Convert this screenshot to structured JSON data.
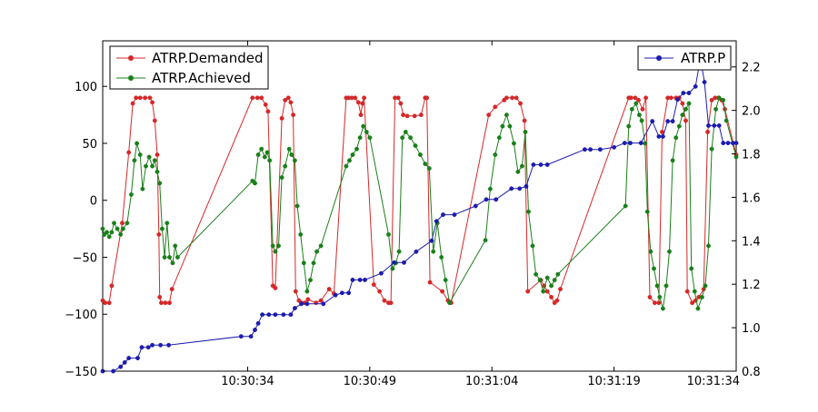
{
  "chart_data": {
    "type": "line",
    "x_unit": "time",
    "x_ticks": [
      "10:30:34",
      "10:30:49",
      "10:31:04",
      "10:31:19",
      "10:31:34"
    ],
    "x_tick_seconds": [
      34,
      49,
      64,
      79,
      94
    ],
    "xlim": [
      16.2,
      94
    ],
    "left_axis": {
      "ylim": [
        -150,
        140
      ],
      "ticks": [
        -150,
        -100,
        -50,
        0,
        50,
        100
      ]
    },
    "right_axis": {
      "ylim": [
        0.8,
        2.32
      ],
      "ticks": [
        0.8,
        1.0,
        1.2,
        1.4,
        1.6,
        1.8,
        2.0,
        2.2
      ],
      "tick_labels": [
        "0.8",
        "1.0",
        "1.2",
        "1.4",
        "1.6",
        "1.8",
        "2.0",
        "2.2"
      ]
    },
    "grid": false,
    "legends": [
      {
        "placement": "top-left",
        "entries": [
          "ATRP.Demanded",
          "ATRP.Achieved"
        ]
      },
      {
        "placement": "top-right",
        "entries": [
          "ATRP.P"
        ]
      }
    ],
    "series": [
      {
        "name": "ATRP.Demanded",
        "axis": "left",
        "color": "#d62728",
        "points": [
          [
            16.2,
            -88
          ],
          [
            16.5,
            -90
          ],
          [
            17.0,
            -90
          ],
          [
            17.3,
            -75
          ],
          [
            18.6,
            -20
          ],
          [
            19.4,
            42
          ],
          [
            19.9,
            85
          ],
          [
            20.3,
            90
          ],
          [
            20.8,
            90
          ],
          [
            21.4,
            90
          ],
          [
            22.0,
            90
          ],
          [
            22.3,
            86
          ],
          [
            22.6,
            70
          ],
          [
            22.9,
            40
          ],
          [
            23.1,
            -30
          ],
          [
            23.2,
            -85
          ],
          [
            23.4,
            -90
          ],
          [
            23.9,
            -90
          ],
          [
            24.4,
            -90
          ],
          [
            24.7,
            -78
          ],
          [
            34.6,
            90
          ],
          [
            35.2,
            90
          ],
          [
            35.7,
            90
          ],
          [
            36.2,
            84
          ],
          [
            36.5,
            78
          ],
          [
            37.1,
            -75
          ],
          [
            37.4,
            -77
          ],
          [
            38.2,
            72
          ],
          [
            38.6,
            88
          ],
          [
            39.0,
            90
          ],
          [
            39.3,
            86
          ],
          [
            39.6,
            75
          ],
          [
            39.9,
            -80
          ],
          [
            40.3,
            -88
          ],
          [
            40.6,
            -90
          ],
          [
            41.0,
            -90
          ],
          [
            41.4,
            -87
          ],
          [
            42.4,
            -90
          ],
          [
            43.0,
            -88
          ],
          [
            44.0,
            -78
          ],
          [
            44.6,
            -82
          ],
          [
            46.1,
            90
          ],
          [
            46.4,
            90
          ],
          [
            46.8,
            90
          ],
          [
            47.2,
            90
          ],
          [
            47.6,
            86
          ],
          [
            47.9,
            75
          ],
          [
            48.1,
            85
          ],
          [
            48.3,
            90
          ],
          [
            49.5,
            -74
          ],
          [
            50.2,
            -80
          ],
          [
            50.8,
            -88
          ],
          [
            51.3,
            -90
          ],
          [
            51.6,
            -90
          ],
          [
            52.1,
            90
          ],
          [
            52.5,
            90
          ],
          [
            52.8,
            85
          ],
          [
            53.1,
            75
          ],
          [
            53.6,
            74
          ],
          [
            54.5,
            74
          ],
          [
            55.3,
            75
          ],
          [
            55.8,
            90
          ],
          [
            56.0,
            90
          ],
          [
            56.4,
            -72
          ],
          [
            57.9,
            -80
          ],
          [
            58.6,
            -88
          ],
          [
            59.0,
            -90
          ],
          [
            63.6,
            75
          ],
          [
            64.4,
            82
          ],
          [
            65.5,
            88
          ],
          [
            65.8,
            90
          ],
          [
            66.5,
            90
          ],
          [
            67.0,
            90
          ],
          [
            67.5,
            85
          ],
          [
            68.0,
            70
          ],
          [
            68.4,
            -80
          ],
          [
            70.0,
            -70
          ],
          [
            70.4,
            -75
          ],
          [
            70.8,
            -80
          ],
          [
            71.3,
            -85
          ],
          [
            71.7,
            -90
          ],
          [
            72.0,
            -88
          ],
          [
            72.4,
            -78
          ],
          [
            80.8,
            90
          ],
          [
            81.1,
            90
          ],
          [
            81.6,
            90
          ],
          [
            82.0,
            88
          ],
          [
            82.5,
            80
          ],
          [
            82.9,
            90
          ],
          [
            83.4,
            -85
          ],
          [
            84.0,
            -90
          ],
          [
            84.5,
            -90
          ],
          [
            84.9,
            60
          ],
          [
            85.6,
            90
          ],
          [
            86.0,
            90
          ],
          [
            86.6,
            90
          ],
          [
            87.0,
            90
          ],
          [
            87.4,
            85
          ],
          [
            87.8,
            70
          ],
          [
            88.0,
            -80
          ],
          [
            88.6,
            -90
          ],
          [
            89.0,
            -88
          ],
          [
            89.4,
            -85
          ],
          [
            90.0,
            -78
          ],
          [
            90.5,
            60
          ],
          [
            91.0,
            88
          ],
          [
            91.4,
            90
          ],
          [
            91.8,
            90
          ],
          [
            92.2,
            88
          ],
          [
            92.6,
            80
          ],
          [
            94.0,
            40
          ]
        ]
      },
      {
        "name": "ATRP.Achieved",
        "axis": "left",
        "color": "#1a7f1a",
        "points": [
          [
            16.2,
            -25
          ],
          [
            16.4,
            -30
          ],
          [
            16.7,
            -28
          ],
          [
            17.0,
            -32
          ],
          [
            17.3,
            -28
          ],
          [
            17.6,
            -20
          ],
          [
            18.0,
            -25
          ],
          [
            18.4,
            -30
          ],
          [
            18.7,
            -25
          ],
          [
            19.2,
            -20
          ],
          [
            19.7,
            5
          ],
          [
            20.1,
            35
          ],
          [
            20.4,
            50
          ],
          [
            20.8,
            40
          ],
          [
            21.1,
            10
          ],
          [
            21.5,
            30
          ],
          [
            21.9,
            38
          ],
          [
            22.3,
            30
          ],
          [
            22.6,
            35
          ],
          [
            22.9,
            25
          ],
          [
            23.2,
            15
          ],
          [
            23.5,
            -25
          ],
          [
            23.8,
            -50
          ],
          [
            24.1,
            -20
          ],
          [
            24.4,
            -50
          ],
          [
            24.8,
            -55
          ],
          [
            25.1,
            -40
          ],
          [
            25.4,
            -50
          ],
          [
            34.6,
            17
          ],
          [
            34.9,
            15
          ],
          [
            35.3,
            40
          ],
          [
            35.7,
            45
          ],
          [
            36.1,
            38
          ],
          [
            36.4,
            42
          ],
          [
            36.7,
            35
          ],
          [
            37.1,
            -40
          ],
          [
            37.4,
            -45
          ],
          [
            37.8,
            -40
          ],
          [
            38.2,
            20
          ],
          [
            38.6,
            30
          ],
          [
            39.1,
            45
          ],
          [
            39.4,
            40
          ],
          [
            39.8,
            35
          ],
          [
            40.1,
            -5
          ],
          [
            40.5,
            -30
          ],
          [
            40.9,
            -55
          ],
          [
            41.3,
            -80
          ],
          [
            41.7,
            -70
          ],
          [
            42.1,
            -55
          ],
          [
            42.5,
            -45
          ],
          [
            43.0,
            -40
          ],
          [
            46.1,
            30
          ],
          [
            46.5,
            35
          ],
          [
            46.9,
            40
          ],
          [
            47.4,
            45
          ],
          [
            47.8,
            55
          ],
          [
            48.2,
            65
          ],
          [
            48.6,
            60
          ],
          [
            49.0,
            55
          ],
          [
            51.3,
            -30
          ],
          [
            51.8,
            -60
          ],
          [
            52.2,
            -55
          ],
          [
            52.6,
            -45
          ],
          [
            53.0,
            55
          ],
          [
            53.4,
            60
          ],
          [
            54.0,
            55
          ],
          [
            54.6,
            48
          ],
          [
            55.2,
            40
          ],
          [
            55.8,
            32
          ],
          [
            56.3,
            28
          ],
          [
            56.8,
            -45
          ],
          [
            57.3,
            -20
          ],
          [
            57.8,
            -50
          ],
          [
            58.3,
            -70
          ],
          [
            58.8,
            -90
          ],
          [
            63.2,
            -35
          ],
          [
            63.8,
            10
          ],
          [
            64.4,
            40
          ],
          [
            64.9,
            55
          ],
          [
            65.3,
            65
          ],
          [
            65.8,
            75
          ],
          [
            66.2,
            65
          ],
          [
            66.7,
            50
          ],
          [
            67.2,
            25
          ],
          [
            67.7,
            30
          ],
          [
            68.1,
            60
          ],
          [
            68.5,
            -10
          ],
          [
            69.0,
            -40
          ],
          [
            69.4,
            -65
          ],
          [
            69.9,
            -70
          ],
          [
            70.3,
            -80
          ],
          [
            70.8,
            -68
          ],
          [
            71.3,
            -75
          ],
          [
            71.7,
            -70
          ],
          [
            72.1,
            -65
          ],
          [
            80.4,
            -5
          ],
          [
            80.8,
            65
          ],
          [
            81.2,
            80
          ],
          [
            81.7,
            85
          ],
          [
            82.1,
            75
          ],
          [
            82.4,
            70
          ],
          [
            82.8,
            50
          ],
          [
            83.1,
            -10
          ],
          [
            83.5,
            -45
          ],
          [
            83.9,
            -60
          ],
          [
            84.3,
            -75
          ],
          [
            84.6,
            -85
          ],
          [
            85.0,
            -95
          ],
          [
            85.4,
            -75
          ],
          [
            85.8,
            -45
          ],
          [
            86.2,
            35
          ],
          [
            86.6,
            55
          ],
          [
            87.0,
            65
          ],
          [
            87.4,
            75
          ],
          [
            87.8,
            80
          ],
          [
            88.2,
            85
          ],
          [
            88.5,
            -60
          ],
          [
            88.9,
            -80
          ],
          [
            89.3,
            -95
          ],
          [
            89.8,
            -85
          ],
          [
            90.2,
            -75
          ],
          [
            90.6,
            -40
          ],
          [
            91.0,
            45
          ],
          [
            91.5,
            80
          ],
          [
            91.9,
            90
          ],
          [
            92.4,
            88
          ],
          [
            92.8,
            70
          ],
          [
            94.0,
            38
          ]
        ]
      },
      {
        "name": "ATRP.P",
        "axis": "right",
        "color": "#1c1cb0",
        "points": [
          [
            16.2,
            0.8
          ],
          [
            17.5,
            0.8
          ],
          [
            18.4,
            0.82
          ],
          [
            18.9,
            0.84
          ],
          [
            19.4,
            0.86
          ],
          [
            20.5,
            0.86
          ],
          [
            21.0,
            0.91
          ],
          [
            21.8,
            0.91
          ],
          [
            22.3,
            0.92
          ],
          [
            23.3,
            0.92
          ],
          [
            24.3,
            0.92
          ],
          [
            33.2,
            0.96
          ],
          [
            34.4,
            0.96
          ],
          [
            34.9,
            0.99
          ],
          [
            35.3,
            1.02
          ],
          [
            35.8,
            1.06
          ],
          [
            36.6,
            1.06
          ],
          [
            37.4,
            1.06
          ],
          [
            38.4,
            1.06
          ],
          [
            39.3,
            1.06
          ],
          [
            39.8,
            1.09
          ],
          [
            40.6,
            1.11
          ],
          [
            41.3,
            1.11
          ],
          [
            43.3,
            1.11
          ],
          [
            44.8,
            1.15
          ],
          [
            45.6,
            1.16
          ],
          [
            46.4,
            1.16
          ],
          [
            46.9,
            1.22
          ],
          [
            47.8,
            1.22
          ],
          [
            48.4,
            1.22
          ],
          [
            50.4,
            1.25
          ],
          [
            52.0,
            1.3
          ],
          [
            53.2,
            1.3
          ],
          [
            54.7,
            1.35
          ],
          [
            56.6,
            1.4
          ],
          [
            57.2,
            1.49
          ],
          [
            58.0,
            1.52
          ],
          [
            59.4,
            1.52
          ],
          [
            62.0,
            1.56
          ],
          [
            63.3,
            1.59
          ],
          [
            64.5,
            1.59
          ],
          [
            66.4,
            1.64
          ],
          [
            67.4,
            1.64
          ],
          [
            68.2,
            1.65
          ],
          [
            69.1,
            1.75
          ],
          [
            70.0,
            1.75
          ],
          [
            70.8,
            1.75
          ],
          [
            75.4,
            1.82
          ],
          [
            76.1,
            1.82
          ],
          [
            77.3,
            1.82
          ],
          [
            79.0,
            1.83
          ],
          [
            80.3,
            1.85
          ],
          [
            81.0,
            1.85
          ],
          [
            82.3,
            1.85
          ],
          [
            83.7,
            1.95
          ],
          [
            84.5,
            1.88
          ],
          [
            85.0,
            1.88
          ],
          [
            85.6,
            1.95
          ],
          [
            86.2,
            1.95
          ],
          [
            86.8,
            2.05
          ],
          [
            87.5,
            2.08
          ],
          [
            88.2,
            2.08
          ],
          [
            89.0,
            2.11
          ],
          [
            89.6,
            2.24
          ],
          [
            90.1,
            2.13
          ],
          [
            90.6,
            1.93
          ],
          [
            91.3,
            1.93
          ],
          [
            91.9,
            1.93
          ],
          [
            92.4,
            1.85
          ],
          [
            93.0,
            1.85
          ],
          [
            93.6,
            1.85
          ],
          [
            94.0,
            1.85
          ]
        ]
      }
    ]
  }
}
